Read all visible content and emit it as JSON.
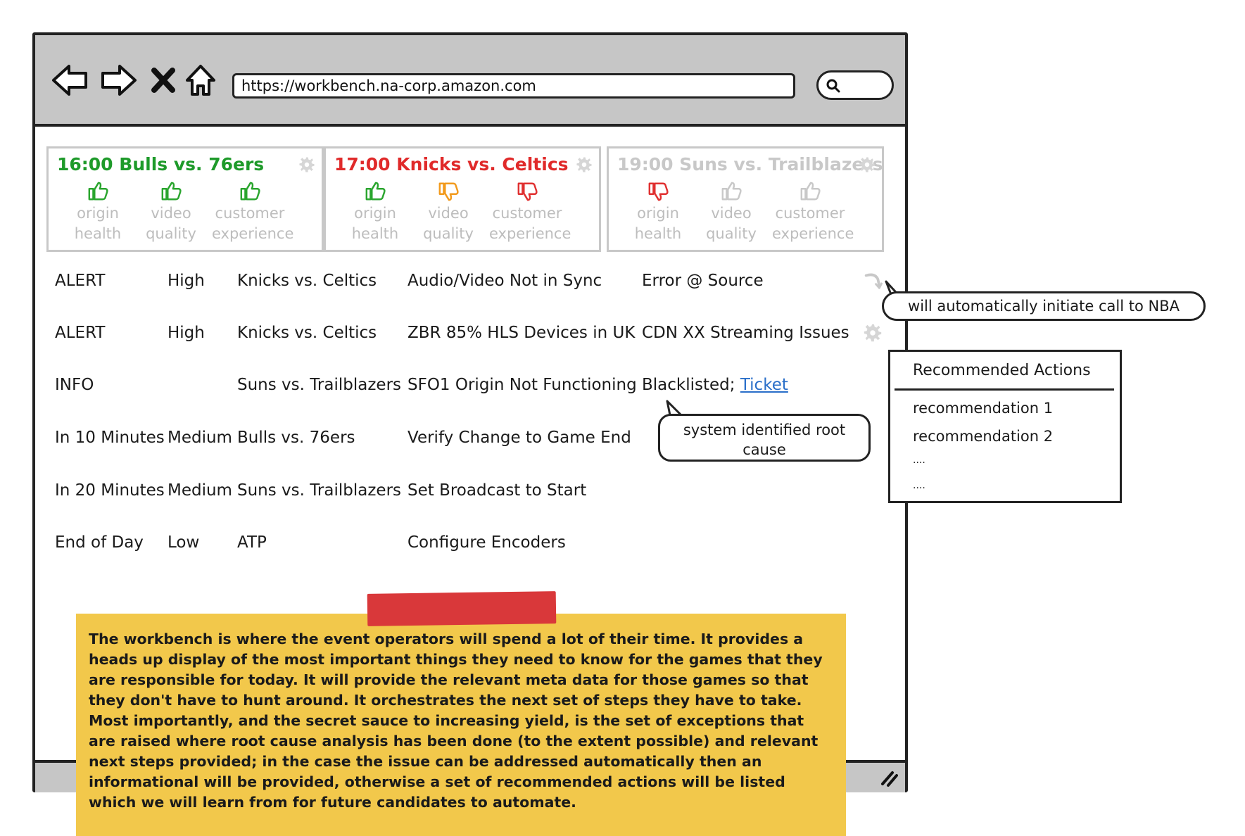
{
  "browser": {
    "url": "https://workbench.na-corp.amazon.com",
    "icons": [
      "back-arrow-icon",
      "forward-arrow-icon",
      "close-icon",
      "home-icon",
      "search-icon"
    ]
  },
  "colors": {
    "good": "#2aa52e",
    "warn": "#f29a1c",
    "bad": "#e03030",
    "inactive": "#c8c8c8",
    "note": "#f2c84b",
    "tape": "#d9383a",
    "link": "#2a6fc9"
  },
  "games": [
    {
      "title": "16:00 Bulls vs. 76ers",
      "title_color": "#1e9a2a",
      "metrics": [
        {
          "line1": "origin",
          "line2": "health",
          "icon": "thumbs-up-icon",
          "color": "#2aa52e"
        },
        {
          "line1": "video",
          "line2": "quality",
          "icon": "thumbs-up-icon",
          "color": "#2aa52e"
        },
        {
          "line1": "customer",
          "line2": "experience",
          "icon": "thumbs-up-icon",
          "color": "#2aa52e"
        }
      ]
    },
    {
      "title": "17:00 Knicks vs. Celtics",
      "title_color": "#e02a2a",
      "metrics": [
        {
          "line1": "origin",
          "line2": "health",
          "icon": "thumbs-up-icon",
          "color": "#2aa52e"
        },
        {
          "line1": "video",
          "line2": "quality",
          "icon": "thumbs-down-icon",
          "color": "#f29a1c"
        },
        {
          "line1": "customer",
          "line2": "experience",
          "icon": "thumbs-down-icon",
          "color": "#e03030"
        }
      ]
    },
    {
      "title": "19:00 Suns vs. Trailblazers",
      "title_color": "#c8c8c8",
      "metrics": [
        {
          "line1": "origin",
          "line2": "health",
          "icon": "thumbs-down-icon",
          "color": "#e03030"
        },
        {
          "line1": "video",
          "line2": "quality",
          "icon": "thumbs-up-icon",
          "color": "#c8c8c8"
        },
        {
          "line1": "customer",
          "line2": "experience",
          "icon": "thumbs-up-icon",
          "color": "#c8c8c8"
        }
      ]
    }
  ],
  "events": [
    {
      "type": "ALERT",
      "priority": "High",
      "game": "Knicks vs. Celtics",
      "issue": "Audio/Video Not in Sync",
      "status": "Error @ Source",
      "action_icon": "undo-arrow-icon"
    },
    {
      "type": "ALERT",
      "priority": "High",
      "game": "Knicks vs. Celtics",
      "issue": "ZBR 85% HLS Devices in UK",
      "status": "CDN XX Streaming Issues",
      "action_icon": "gear-icon"
    },
    {
      "type": "INFO",
      "priority": "",
      "game": "Suns vs. Trailblazers",
      "issue": "SFO1 Origin Not Functioning",
      "status": "Blacklisted;",
      "link": "Ticket"
    },
    {
      "type": "In 10 Minutes",
      "priority": "Medium",
      "game": "Bulls vs. 76ers",
      "issue": "Verify Change to Game End",
      "status": ""
    },
    {
      "type": "In 20 Minutes",
      "priority": "Medium",
      "game": "Suns vs. Trailblazers",
      "issue": "Set Broadcast to Start",
      "status": ""
    },
    {
      "type": "End of Day",
      "priority": "Low",
      "game": "ATP",
      "issue": "Configure Encoders",
      "status": ""
    }
  ],
  "callouts": {
    "auto_call": "will automatically initiate call to NBA",
    "root_cause": "system identified root cause"
  },
  "recommended": {
    "title": "Recommended Actions",
    "items": [
      "recommendation 1",
      "recommendation 2",
      "....",
      "...."
    ]
  },
  "note": {
    "text": "The workbench is where the event operators will spend a lot of their time.  It provides a heads up display of the most important things they need to know for the games that they are responsible for today.  It will provide the relevant meta data for those games so that they don't have to hunt around.  It orchestrates the next set of steps they have to take.  Most importantly, and the secret sauce to increasing yield, is the  set of exceptions that are raised where root cause analysis has been done (to the extent possible) and relevant next steps provided; in the case the issue can be addressed automatically then an informational will be provided, otherwise a set of recommended actions will be listed which we will learn from for future candidates to automate."
  }
}
